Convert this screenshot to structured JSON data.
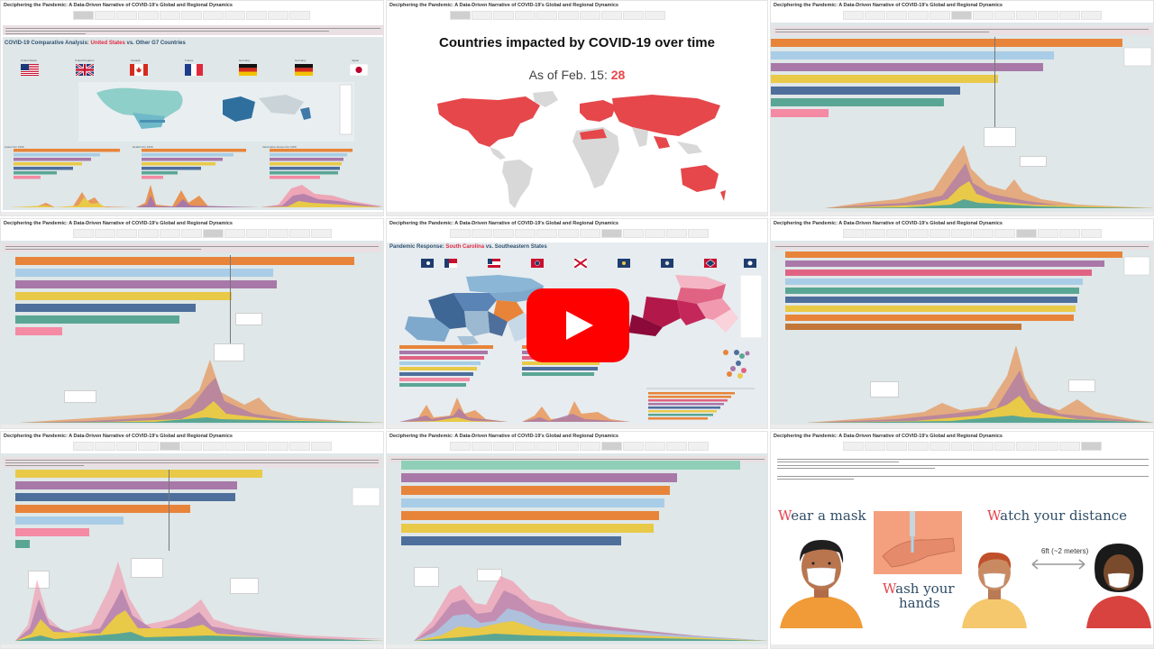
{
  "collage": {
    "story_title": "Deciphering the Pandemic: A Data-Driven Narrative of COVID-19's Global and Regional Dynamics"
  },
  "g7_dashboard": {
    "title_prefix": "COVID-19 Comparative Analysis: ",
    "title_highlight": "United States",
    "title_suffix": " vs. Other G7 Countries",
    "country_labels": [
      "United States",
      "United Kingdom",
      "Canada",
      "France",
      "Germany",
      "Germany",
      "Japan"
    ],
    "section_labels": [
      "Cases Per 100K",
      "Deaths Per 100K",
      "Vaccination Doses Per 100K"
    ]
  },
  "map_slide": {
    "title": "Countries impacted by COVID-19 over time",
    "as_of_label": "As of Feb. 15: ",
    "as_of_value": "28"
  },
  "southeast_dashboard": {
    "title_prefix": "Pandemic Response: ",
    "title_highlight": "South Carolina",
    "title_suffix": " vs. Southeastern States"
  },
  "psa_slide": {
    "mask_cap": "W",
    "mask_rest": "ear a mask",
    "wash_cap": "W",
    "wash_rest_1": "ash your",
    "wash_rest_2": "hands",
    "distance_cap": "W",
    "distance_rest": "atch your distance",
    "distance_label": "6ft (~2 meters)"
  },
  "video": {
    "play_icon": "youtube-play-icon"
  },
  "colors": {
    "accent_red": "#e02a44",
    "map_red": "#e5474b",
    "orange": "#e8843a",
    "light_blue": "#a9cde6",
    "purple": "#a878a8",
    "yellow": "#e9c948",
    "steel_blue": "#4e6f9c",
    "teal": "#5aa694",
    "pink": "#f48aa3"
  }
}
